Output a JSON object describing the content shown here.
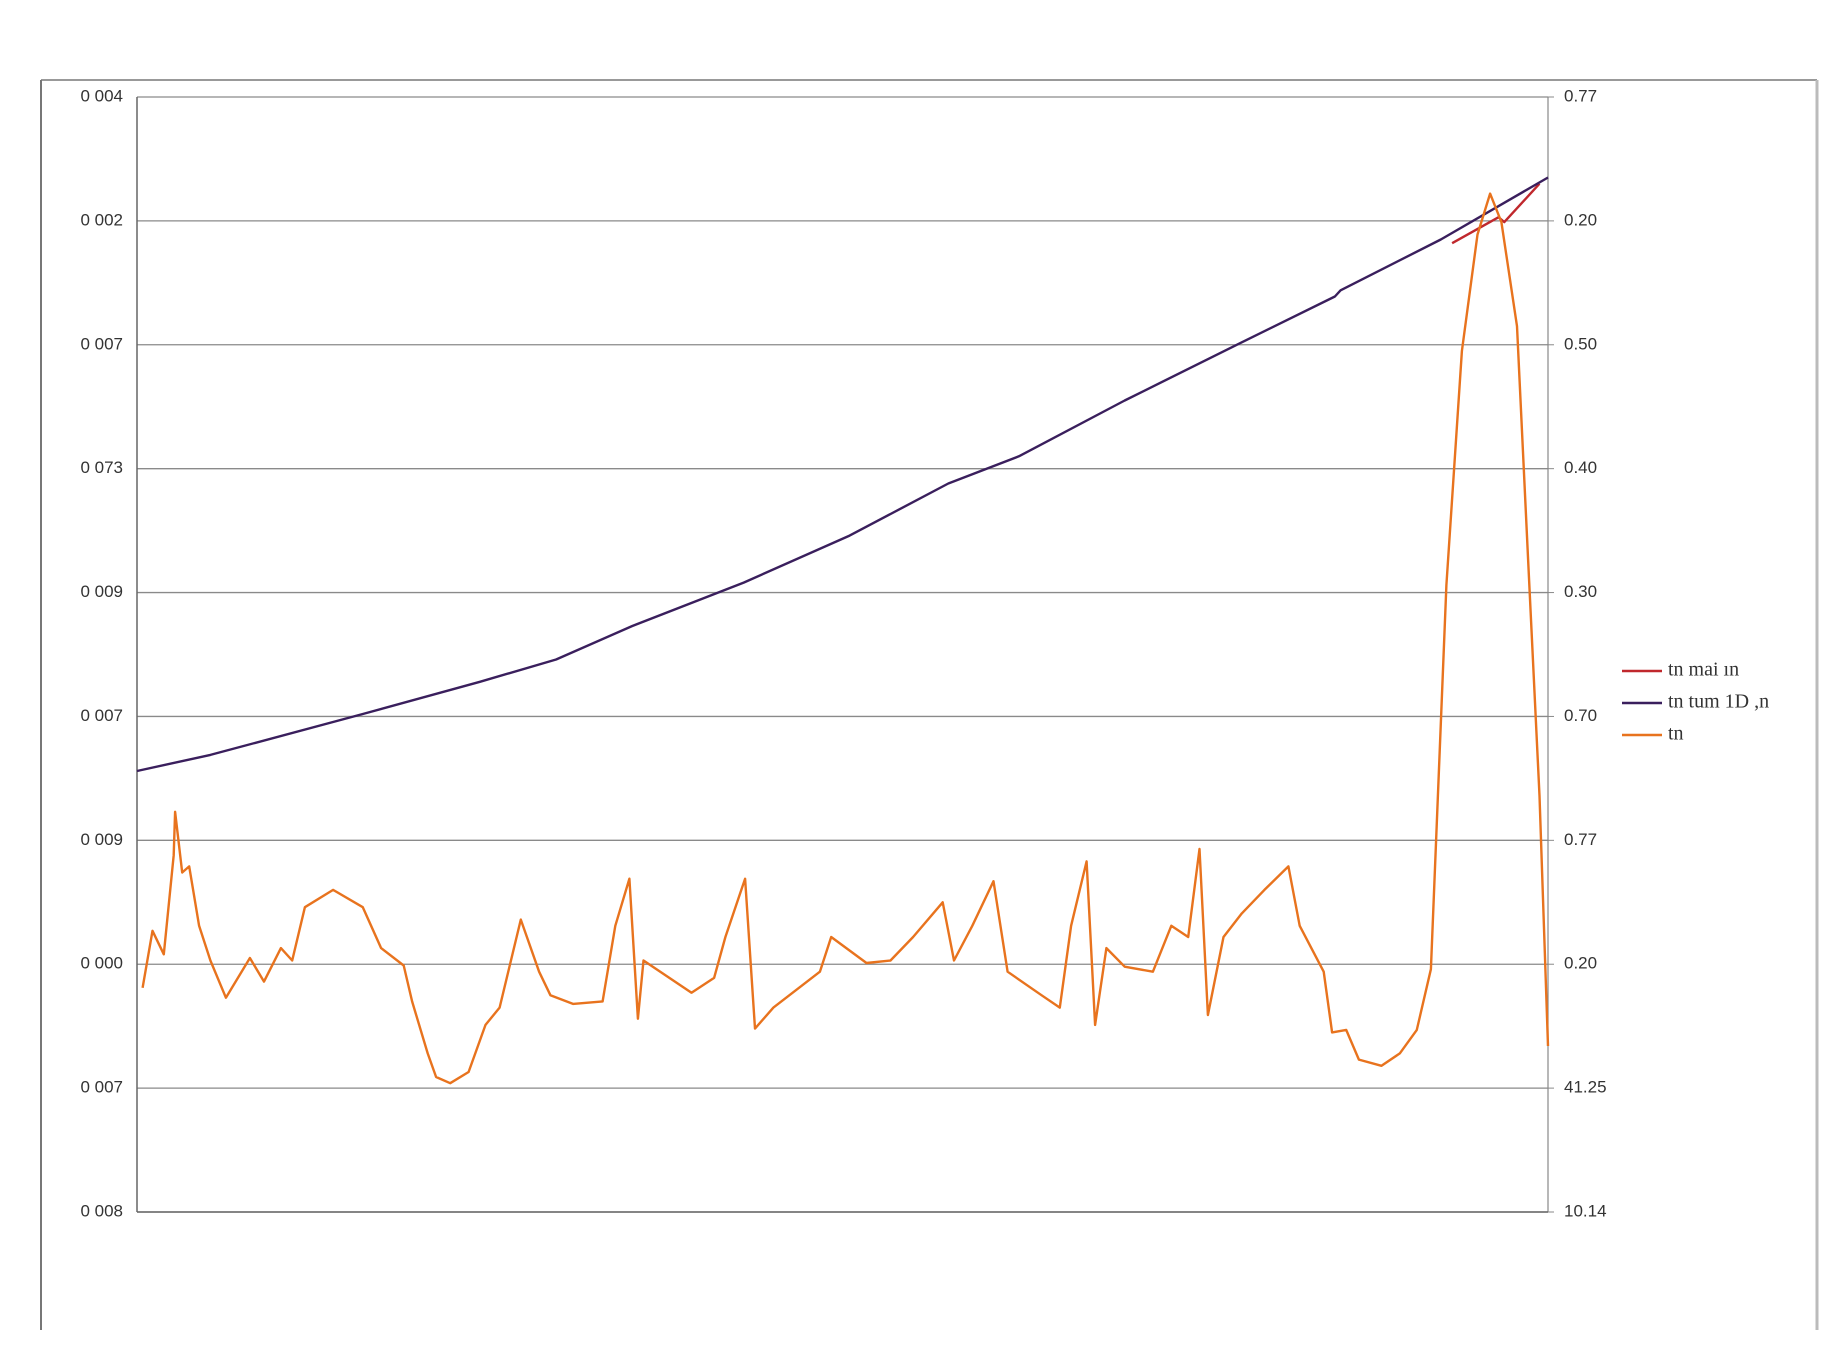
{
  "chart_data": {
    "type": "line",
    "xlim": [
      0,
      100
    ],
    "ylim": [
      0,
      9
    ],
    "yticks": [
      {
        "value": 0,
        "label": "0 008"
      },
      {
        "value": 1,
        "label": "0 007"
      },
      {
        "value": 2,
        "label": "0 000"
      },
      {
        "value": 3,
        "label": "0 009"
      },
      {
        "value": 4,
        "label": "0 007"
      },
      {
        "value": 5,
        "label": "0 009"
      },
      {
        "value": 6,
        "label": "0 073"
      },
      {
        "value": 7,
        "label": "0 007"
      },
      {
        "value": 8,
        "label": "0 002"
      },
      {
        "value": 9,
        "label": "0 004"
      }
    ],
    "y2lim": [
      0,
      9
    ],
    "y2ticks": [
      {
        "value": 0,
        "label": "10.14"
      },
      {
        "value": 1,
        "label": "41.25"
      },
      {
        "value": 2,
        "label": "0.20"
      },
      {
        "value": 3,
        "label": "0.77"
      },
      {
        "value": 4,
        "label": "0.70"
      },
      {
        "value": 5,
        "label": "0.30"
      },
      {
        "value": 6,
        "label": "0.40"
      },
      {
        "value": 7,
        "label": "0.50"
      },
      {
        "value": 8,
        "label": "0.20"
      },
      {
        "value": 9,
        "label": "0.77"
      }
    ],
    "grid": true,
    "legend": "right",
    "series": [
      {
        "name": "tn mai ın",
        "color": "#c0282d",
        "x": [
          93.2,
          96.5,
          96.9,
          99.4
        ],
        "values": [
          7.82,
          8.03,
          7.99,
          8.3
        ]
      },
      {
        "name": "tn tum 1D ,n",
        "color": "#3a1f5d",
        "x": [
          0,
          5.2,
          16.0,
          24.3,
          29.7,
          35.1,
          43.0,
          50.5,
          57.5,
          62.5,
          70.0,
          78.3,
          84.9,
          85.3,
          92.4,
          100
        ],
        "values": [
          3.56,
          3.69,
          4.02,
          4.28,
          4.46,
          4.73,
          5.08,
          5.46,
          5.88,
          6.1,
          6.55,
          7.02,
          7.39,
          7.44,
          7.85,
          8.35
        ]
      },
      {
        "name": "tn",
        "color": "#e8731e",
        "x": [
          0.4,
          1.1,
          1.9,
          2.6,
          2.7,
          3.2,
          3.7,
          4.4,
          5.2,
          6.3,
          8.0,
          9.0,
          10.2,
          11.0,
          11.9,
          13.9,
          16.0,
          17.3,
          18.9,
          19.5,
          20.6,
          21.2,
          22.2,
          23.5,
          24.7,
          25.7,
          27.2,
          28.5,
          29.3,
          30.9,
          33.0,
          33.9,
          34.9,
          35.5,
          35.9,
          39.3,
          40.9,
          41.7,
          43.1,
          43.8,
          45.1,
          48.4,
          49.2,
          51.7,
          53.4,
          55.0,
          57.1,
          57.9,
          59.2,
          60.7,
          61.7,
          64.1,
          65.4,
          66.2,
          67.3,
          67.9,
          68.7,
          70.0,
          72.0,
          73.3,
          74.5,
          75.3,
          75.9,
          77.0,
          78.3,
          79.9,
          81.6,
          82.4,
          84.1,
          84.7,
          85.7,
          86.6,
          88.2,
          89.5,
          90.7,
          91.7,
          92.8,
          93.9,
          95.0,
          95.9,
          96.7,
          97.8,
          98.6,
          99.4,
          100
        ],
        "values": [
          1.81,
          2.27,
          2.08,
          2.88,
          3.23,
          2.74,
          2.79,
          2.31,
          2.03,
          1.73,
          2.05,
          1.86,
          2.13,
          2.03,
          2.46,
          2.6,
          2.46,
          2.13,
          1.99,
          1.7,
          1.28,
          1.09,
          1.04,
          1.13,
          1.51,
          1.65,
          2.36,
          1.94,
          1.75,
          1.68,
          1.7,
          2.31,
          2.69,
          1.56,
          2.03,
          1.77,
          1.89,
          2.22,
          2.69,
          1.48,
          1.65,
          1.94,
          2.22,
          2.01,
          2.03,
          2.22,
          2.5,
          2.03,
          2.31,
          2.67,
          1.94,
          1.75,
          1.65,
          2.31,
          2.83,
          1.51,
          2.13,
          1.98,
          1.94,
          2.31,
          2.22,
          2.93,
          1.59,
          2.22,
          2.41,
          2.6,
          2.79,
          2.31,
          1.94,
          1.45,
          1.47,
          1.23,
          1.18,
          1.28,
          1.47,
          1.96,
          5.06,
          6.95,
          7.89,
          8.22,
          7.99,
          7.15,
          5.25,
          3.36,
          1.34
        ]
      }
    ]
  }
}
